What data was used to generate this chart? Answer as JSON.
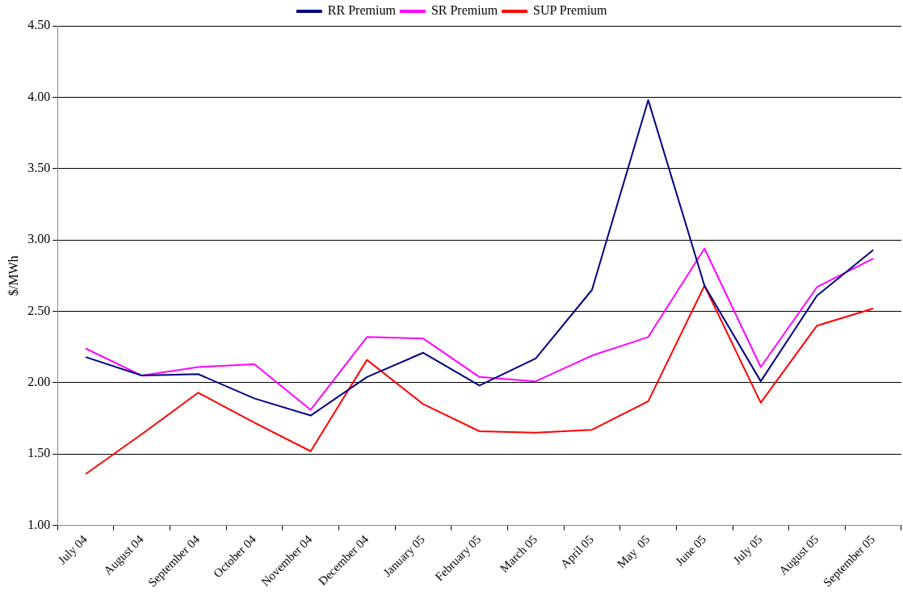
{
  "chart_data": {
    "type": "line",
    "ylabel": "$/MWh",
    "categories": [
      "July 04",
      "August 04",
      "September 04",
      "October 04",
      "November 04",
      "December 04",
      "January 05",
      "February 05",
      "March 05",
      "April 05",
      "May  05",
      "June 05",
      "July 05",
      "August 05",
      "September 05"
    ],
    "series": [
      {
        "name": "RR Premium",
        "color": "#000080",
        "values": [
          2.18,
          2.05,
          2.06,
          1.89,
          1.77,
          2.04,
          2.21,
          1.98,
          2.17,
          2.65,
          3.98,
          2.68,
          2.01,
          2.61,
          2.93
        ]
      },
      {
        "name": "SR Premium",
        "color": "#ff00ff",
        "values": [
          2.24,
          2.05,
          2.11,
          2.13,
          1.81,
          2.32,
          2.31,
          2.04,
          2.01,
          2.19,
          2.32,
          2.94,
          2.11,
          2.67,
          2.87
        ]
      },
      {
        "name": "SUP Premium",
        "color": "#ff0000",
        "values": [
          1.36,
          1.64,
          1.93,
          1.72,
          1.52,
          2.16,
          1.85,
          1.66,
          1.65,
          1.67,
          1.87,
          2.68,
          1.86,
          2.4,
          2.52
        ]
      }
    ],
    "ylim": [
      1,
      4.5
    ],
    "yticks": [
      {
        "value": 1,
        "label": "1.00"
      },
      {
        "value": 1.5,
        "label": "1.50"
      },
      {
        "value": 2,
        "label": "2.00"
      },
      {
        "value": 2.5,
        "label": "2.50"
      },
      {
        "value": 3,
        "label": "3.00"
      },
      {
        "value": 3.5,
        "label": "3.50"
      },
      {
        "value": 4,
        "label": "4.00"
      },
      {
        "value": 4.5,
        "label": "4.50"
      }
    ],
    "grid": "y",
    "legend": "top",
    "marker": "none",
    "line_style": "solid"
  }
}
